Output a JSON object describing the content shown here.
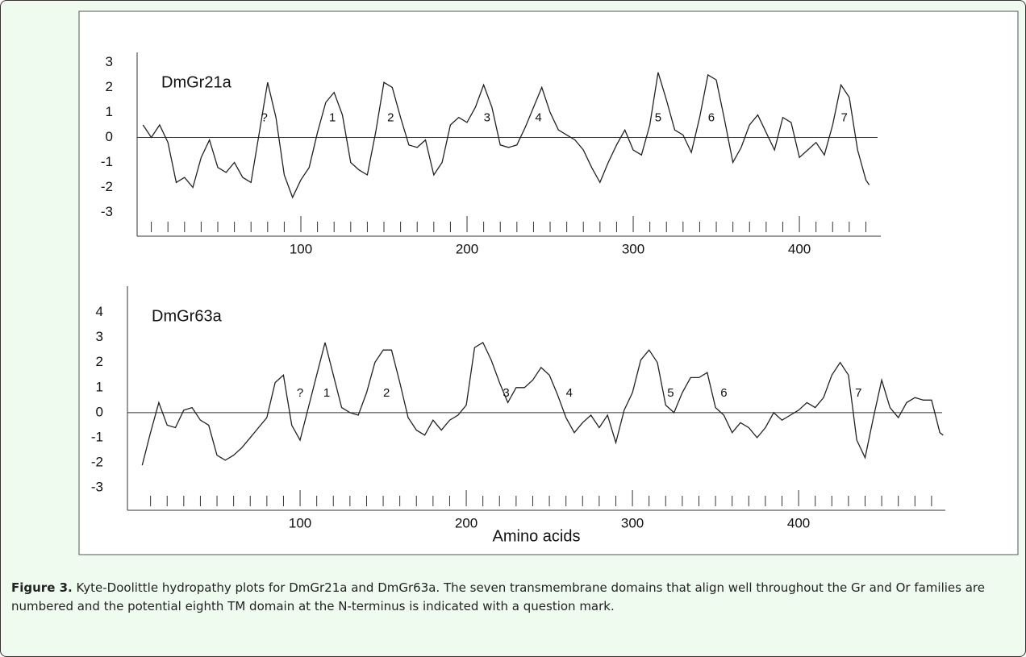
{
  "chart_data": [
    {
      "type": "line",
      "title": "DmGr21a",
      "color": "#222222",
      "x": [
        5,
        10,
        15,
        20,
        25,
        30,
        35,
        40,
        45,
        50,
        55,
        60,
        65,
        70,
        75,
        80,
        85,
        90,
        95,
        100,
        105,
        110,
        115,
        120,
        125,
        130,
        135,
        140,
        145,
        150,
        155,
        160,
        165,
        170,
        175,
        180,
        185,
        190,
        195,
        200,
        205,
        210,
        215,
        220,
        225,
        230,
        235,
        240,
        245,
        250,
        255,
        260,
        265,
        270,
        275,
        280,
        285,
        290,
        295,
        300,
        305,
        310,
        315,
        320,
        325,
        330,
        335,
        340,
        345,
        350,
        355,
        360,
        365,
        370,
        375,
        380,
        385,
        390,
        395,
        400,
        405,
        410,
        415,
        420,
        425,
        430,
        435,
        440,
        442
      ],
      "values": [
        0.5,
        0.0,
        0.5,
        -0.2,
        -1.8,
        -1.6,
        -2.0,
        -0.8,
        -0.1,
        -1.2,
        -1.4,
        -1.0,
        -1.6,
        -1.8,
        0.2,
        2.2,
        0.8,
        -1.5,
        -2.4,
        -1.7,
        -1.2,
        0.2,
        1.4,
        1.8,
        0.9,
        -1.0,
        -1.3,
        -1.5,
        0.2,
        2.2,
        2.0,
        0.8,
        -0.3,
        -0.4,
        -0.1,
        -1.5,
        -1.0,
        0.5,
        0.8,
        0.6,
        1.2,
        2.1,
        1.2,
        -0.3,
        -0.4,
        -0.3,
        0.4,
        1.2,
        2.0,
        1.0,
        0.3,
        0.1,
        -0.1,
        -0.5,
        -1.2,
        -1.8,
        -1.0,
        -0.3,
        0.3,
        -0.5,
        -0.7,
        0.5,
        2.6,
        1.5,
        0.3,
        0.1,
        -0.6,
        0.8,
        2.5,
        2.3,
        0.7,
        -1.0,
        -0.4,
        0.5,
        0.9,
        0.2,
        -0.5,
        0.8,
        0.6,
        -0.8,
        -0.5,
        -0.2,
        -0.7,
        0.5,
        2.1,
        1.6,
        -0.5,
        -1.7,
        -1.9
      ],
      "xlim": [
        1.46,
        449
      ],
      "ylim": [
        -3.95,
        3.4
      ],
      "xticks": [
        100,
        200,
        300,
        400
      ],
      "xminorticks": [
        10,
        20,
        30,
        40,
        50,
        60,
        70,
        80,
        90,
        110,
        120,
        130,
        140,
        150,
        160,
        170,
        180,
        190,
        210,
        220,
        230,
        240,
        250,
        260,
        270,
        280,
        290,
        310,
        320,
        330,
        340,
        350,
        360,
        370,
        380,
        390,
        410,
        420,
        430,
        440
      ],
      "yticks": [
        3,
        2,
        1,
        0,
        -1,
        -2,
        -3
      ],
      "reference_line": 0,
      "annotations": [
        {
          "text": "?",
          "x": 78,
          "y": 0.45
        },
        {
          "text": "1",
          "x": 119,
          "y": 0.45
        },
        {
          "text": "2",
          "x": 154,
          "y": 0.45
        },
        {
          "text": "3",
          "x": 212,
          "y": 0.45
        },
        {
          "text": "4",
          "x": 243,
          "y": 0.45
        },
        {
          "text": "5",
          "x": 315,
          "y": 0.45
        },
        {
          "text": "6",
          "x": 347,
          "y": 0.45
        },
        {
          "text": "7",
          "x": 427,
          "y": 0.45
        }
      ]
    },
    {
      "type": "line",
      "title": "DmGr63a",
      "color": "#222222",
      "xlabel": "Amino acids",
      "x": [
        5,
        10,
        15,
        20,
        25,
        30,
        35,
        40,
        45,
        50,
        55,
        60,
        65,
        70,
        75,
        80,
        85,
        90,
        95,
        100,
        105,
        110,
        115,
        120,
        125,
        130,
        135,
        140,
        145,
        150,
        155,
        160,
        165,
        170,
        175,
        180,
        185,
        190,
        195,
        200,
        205,
        210,
        215,
        220,
        225,
        230,
        235,
        240,
        245,
        250,
        255,
        260,
        265,
        270,
        275,
        280,
        285,
        290,
        295,
        300,
        305,
        310,
        315,
        320,
        325,
        330,
        335,
        340,
        345,
        350,
        355,
        360,
        365,
        370,
        375,
        380,
        385,
        390,
        395,
        400,
        405,
        410,
        415,
        420,
        425,
        430,
        435,
        440,
        445,
        450,
        455,
        460,
        465,
        470,
        475,
        480,
        485,
        487
      ],
      "values": [
        -2.1,
        -0.8,
        0.4,
        -0.5,
        -0.6,
        0.1,
        0.2,
        -0.3,
        -0.5,
        -1.7,
        -1.9,
        -1.7,
        -1.4,
        -1.0,
        -0.6,
        -0.2,
        1.2,
        1.5,
        -0.5,
        -1.1,
        0.2,
        1.5,
        2.8,
        1.5,
        0.2,
        0.0,
        -0.1,
        0.8,
        2.0,
        2.5,
        2.5,
        1.2,
        -0.2,
        -0.7,
        -0.9,
        -0.3,
        -0.7,
        -0.3,
        -0.1,
        0.3,
        2.6,
        2.8,
        2.1,
        1.2,
        0.4,
        1.0,
        1.0,
        1.3,
        1.8,
        1.5,
        0.7,
        -0.2,
        -0.8,
        -0.4,
        -0.1,
        -0.6,
        -0.1,
        -1.2,
        0.1,
        0.8,
        2.1,
        2.5,
        2.0,
        0.3,
        0.0,
        0.8,
        1.4,
        1.4,
        1.6,
        0.2,
        -0.1,
        -0.8,
        -0.4,
        -0.6,
        -1.0,
        -0.6,
        0.0,
        -0.3,
        -0.1,
        0.1,
        0.4,
        0.2,
        0.6,
        1.5,
        2.0,
        1.5,
        -1.1,
        -1.8,
        -0.2,
        1.3,
        0.2,
        -0.2,
        0.4,
        0.6,
        0.5,
        0.5,
        -0.8,
        -0.9
      ],
      "xlim": [
        -3.9,
        488.3
      ],
      "ylim": [
        -3.9,
        5.05
      ],
      "xticks": [
        100,
        200,
        300,
        400
      ],
      "xminorticks": [
        10,
        20,
        30,
        40,
        50,
        60,
        70,
        80,
        90,
        110,
        120,
        130,
        140,
        150,
        160,
        170,
        180,
        190,
        210,
        220,
        230,
        240,
        250,
        260,
        270,
        280,
        290,
        310,
        320,
        330,
        340,
        350,
        360,
        370,
        380,
        390,
        410,
        420,
        430,
        440,
        450,
        460,
        470,
        480
      ],
      "yticks": [
        4,
        3,
        2,
        1,
        0,
        -1,
        -2,
        -3
      ],
      "reference_line": 0,
      "annotations": [
        {
          "text": "?",
          "x": 100,
          "y": 0.45
        },
        {
          "text": "1",
          "x": 116,
          "y": 0.45
        },
        {
          "text": "2",
          "x": 152,
          "y": 0.45
        },
        {
          "text": "3",
          "x": 224,
          "y": 0.45
        },
        {
          "text": "4",
          "x": 262,
          "y": 0.45
        },
        {
          "text": "5",
          "x": 323,
          "y": 0.45
        },
        {
          "text": "6",
          "x": 355,
          "y": 0.45
        },
        {
          "text": "7",
          "x": 436,
          "y": 0.45
        }
      ]
    }
  ],
  "caption": {
    "label": "Figure 3.",
    "text": "Kyte-Doolittle hydropathy plots for DmGr21a and DmGr63a. The seven transmembrane domains that align well throughout the Gr and Or families are numbered and the potential eighth TM domain at the N-terminus is indicated with a question mark."
  }
}
